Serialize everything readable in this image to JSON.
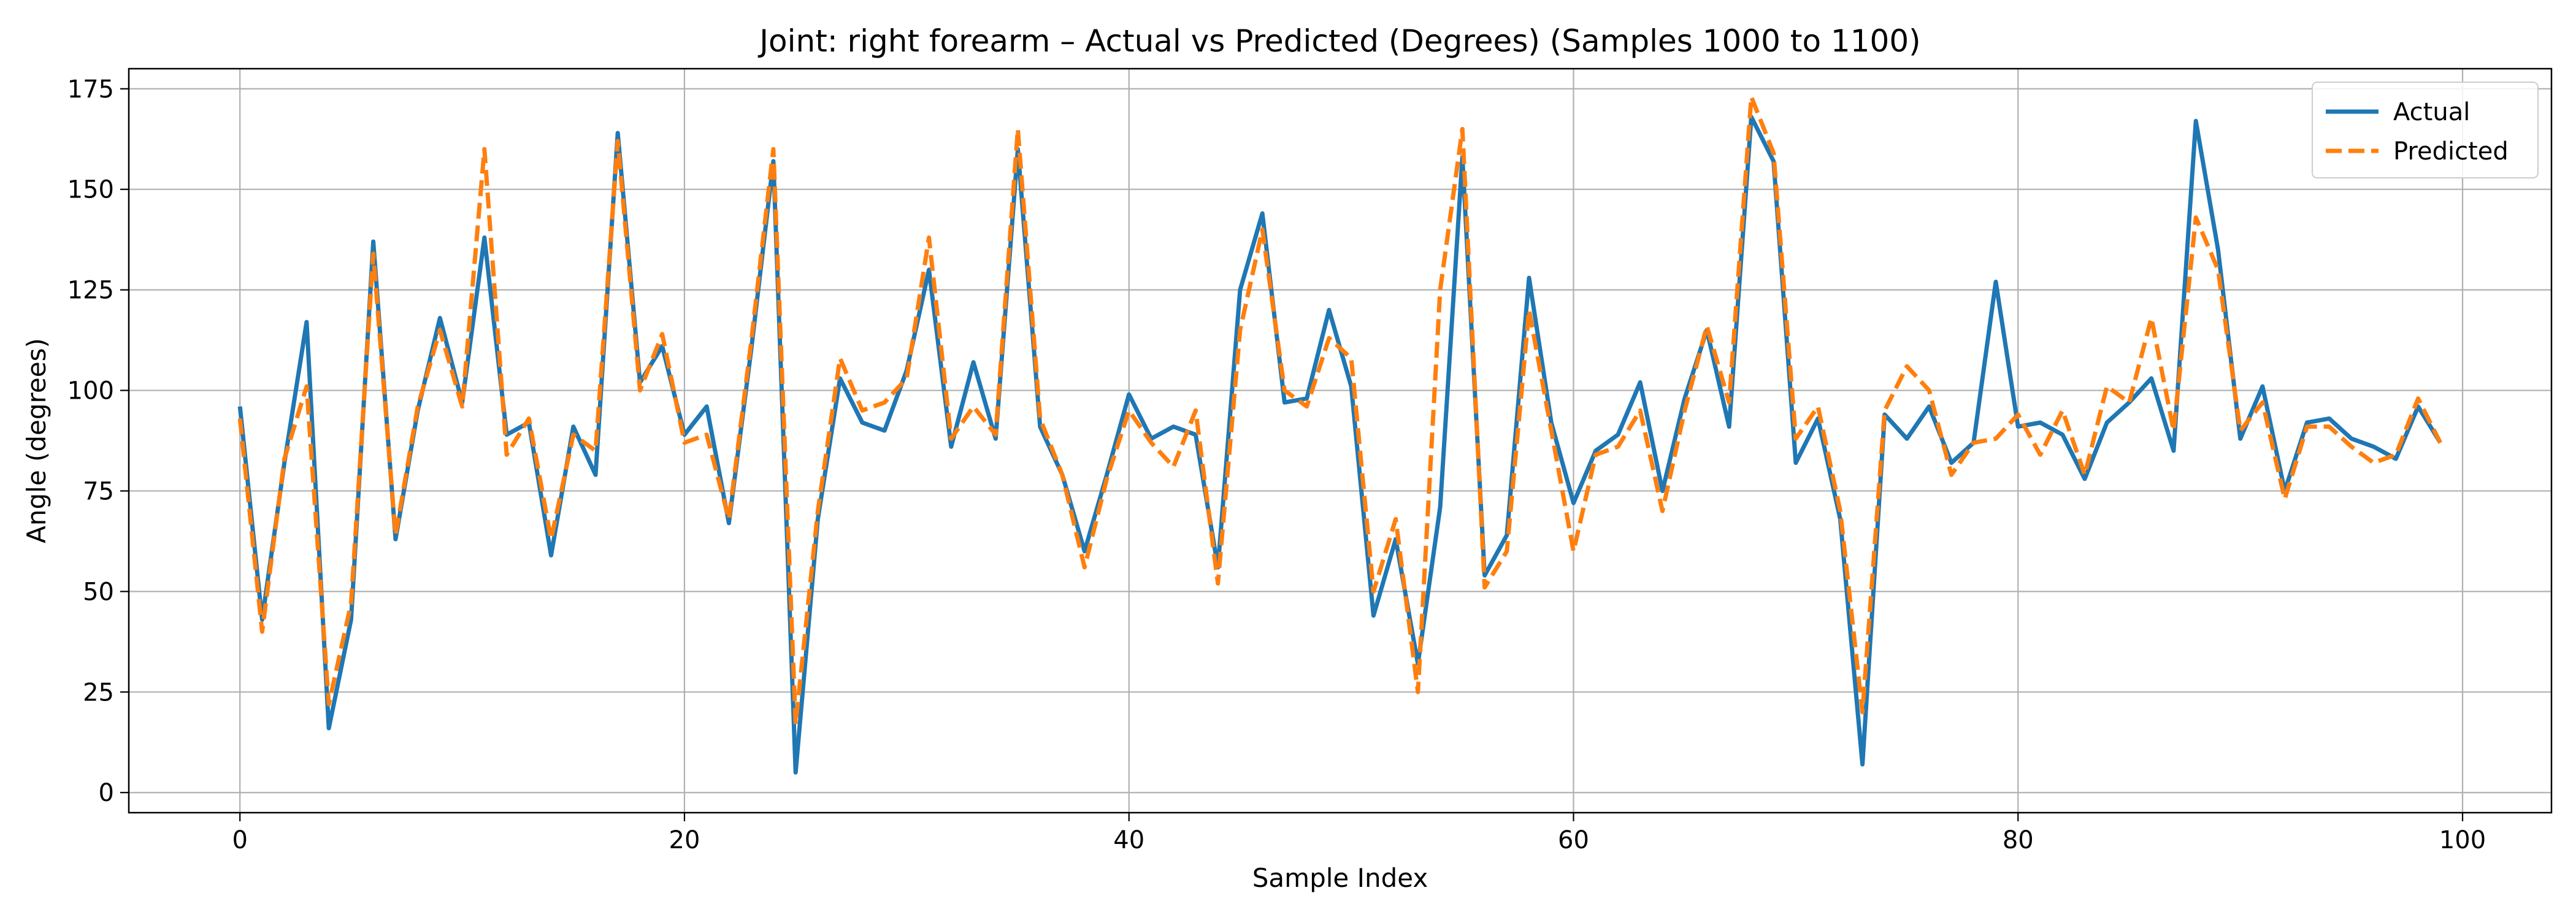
{
  "chart_data": {
    "type": "line",
    "title": "Joint: right forearm – Actual vs Predicted (Degrees) (Samples 1000 to 1100)",
    "xlabel": "Sample Index",
    "ylabel": "Angle (degrees)",
    "xlim": [
      -5,
      104
    ],
    "ylim": [
      -5,
      180
    ],
    "xticks": [
      0,
      20,
      40,
      60,
      80,
      100
    ],
    "yticks": [
      0,
      25,
      50,
      75,
      100,
      125,
      150,
      175
    ],
    "grid": true,
    "legend_position": "top-right",
    "x_start": 0,
    "series": [
      {
        "name": "Actual",
        "color": "#1f77b4",
        "style": "solid",
        "values": [
          96,
          43,
          82,
          117,
          16,
          43,
          137,
          63,
          95,
          118,
          97,
          138,
          89,
          92,
          59,
          91,
          79,
          164,
          102,
          111,
          89,
          96,
          67,
          110,
          157,
          5,
          68,
          103,
          92,
          90,
          105,
          130,
          86,
          107,
          88,
          160,
          91,
          79,
          60,
          79,
          99,
          88,
          91,
          89,
          56,
          125,
          144,
          97,
          98,
          120,
          101,
          44,
          63,
          32,
          71,
          158,
          54,
          64,
          128,
          92,
          72,
          85,
          89,
          102,
          75,
          98,
          115,
          91,
          168,
          157,
          82,
          93,
          68,
          7,
          94,
          88,
          96,
          82,
          87,
          127,
          91,
          92,
          89,
          78,
          92,
          97,
          103,
          85,
          167,
          135,
          88,
          101,
          75,
          92,
          93,
          88,
          86,
          83,
          96,
          87
        ]
      },
      {
        "name": "Predicted",
        "color": "#ff7f0e",
        "style": "dashed",
        "values": [
          93,
          40,
          83,
          101,
          22,
          47,
          134,
          64,
          96,
          115,
          96,
          160,
          84,
          93,
          63,
          89,
          85,
          162,
          100,
          114,
          87,
          89,
          68,
          112,
          160,
          17,
          70,
          108,
          95,
          97,
          103,
          138,
          88,
          96,
          89,
          165,
          93,
          79,
          56,
          78,
          95,
          87,
          81,
          95,
          52,
          115,
          140,
          100,
          96,
          113,
          108,
          50,
          68,
          25,
          125,
          165,
          51,
          60,
          120,
          90,
          60,
          84,
          86,
          95,
          70,
          95,
          116,
          97,
          173,
          159,
          88,
          96,
          70,
          20,
          95,
          106,
          100,
          79,
          87,
          88,
          94,
          84,
          95,
          79,
          101,
          97,
          118,
          90,
          143,
          130,
          90,
          97,
          73,
          91,
          91,
          86,
          82,
          84,
          98,
          87
        ]
      }
    ]
  }
}
